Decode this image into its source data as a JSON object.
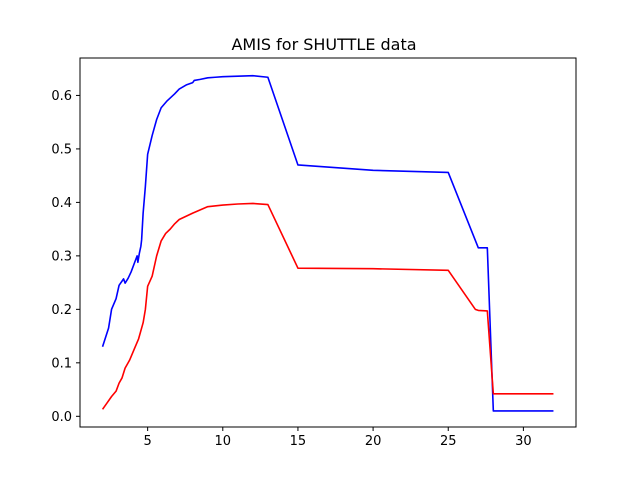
{
  "chart_data": {
    "type": "line",
    "title": "AMIS for SHUTTLE data",
    "xlabel": "",
    "ylabel": "",
    "xlim": [
      0.5,
      33.5
    ],
    "ylim": [
      -0.02,
      0.67
    ],
    "xticks": [
      5,
      10,
      15,
      20,
      25,
      30
    ],
    "yticks": [
      0.0,
      0.1,
      0.2,
      0.3,
      0.4,
      0.5,
      0.6
    ],
    "xtick_labels": [
      "5",
      "10",
      "15",
      "20",
      "25",
      "30"
    ],
    "ytick_labels": [
      "0.0",
      "0.1",
      "0.2",
      "0.3",
      "0.4",
      "0.5",
      "0.6"
    ],
    "grid": false,
    "legend": "none",
    "series": [
      {
        "color": "#0000ff",
        "points": [
          [
            2.0,
            0.13
          ],
          [
            2.4,
            0.165
          ],
          [
            2.6,
            0.2
          ],
          [
            2.9,
            0.22
          ],
          [
            3.1,
            0.245
          ],
          [
            3.4,
            0.257
          ],
          [
            3.5,
            0.249
          ],
          [
            3.7,
            0.258
          ],
          [
            3.9,
            0.27
          ],
          [
            4.1,
            0.285
          ],
          [
            4.3,
            0.3
          ],
          [
            4.35,
            0.288
          ],
          [
            4.45,
            0.305
          ],
          [
            4.55,
            0.318
          ],
          [
            4.6,
            0.33
          ],
          [
            4.7,
            0.38
          ],
          [
            4.85,
            0.43
          ],
          [
            5.0,
            0.49
          ],
          [
            5.3,
            0.525
          ],
          [
            5.6,
            0.555
          ],
          [
            5.9,
            0.577
          ],
          [
            6.3,
            0.59
          ],
          [
            6.8,
            0.603
          ],
          [
            7.1,
            0.612
          ],
          [
            7.6,
            0.62
          ],
          [
            8.0,
            0.624
          ],
          [
            8.1,
            0.628
          ],
          [
            8.5,
            0.63
          ],
          [
            9.0,
            0.633
          ],
          [
            9.5,
            0.634
          ],
          [
            10.0,
            0.635
          ],
          [
            11.0,
            0.636
          ],
          [
            12.0,
            0.637
          ],
          [
            13.0,
            0.634
          ],
          [
            15.0,
            0.47
          ],
          [
            20.0,
            0.46
          ],
          [
            25.0,
            0.456
          ],
          [
            27.0,
            0.315
          ],
          [
            27.6,
            0.315
          ],
          [
            28.0,
            0.01
          ],
          [
            32.0,
            0.01
          ]
        ]
      },
      {
        "color": "#ff0000",
        "points": [
          [
            2.0,
            0.013
          ],
          [
            2.3,
            0.025
          ],
          [
            2.6,
            0.037
          ],
          [
            2.9,
            0.047
          ],
          [
            3.1,
            0.062
          ],
          [
            3.3,
            0.072
          ],
          [
            3.5,
            0.09
          ],
          [
            3.8,
            0.105
          ],
          [
            4.1,
            0.125
          ],
          [
            4.4,
            0.145
          ],
          [
            4.7,
            0.175
          ],
          [
            4.85,
            0.2
          ],
          [
            5.0,
            0.243
          ],
          [
            5.3,
            0.262
          ],
          [
            5.6,
            0.3
          ],
          [
            5.9,
            0.328
          ],
          [
            6.2,
            0.342
          ],
          [
            6.5,
            0.35
          ],
          [
            6.8,
            0.36
          ],
          [
            7.1,
            0.368
          ],
          [
            8.0,
            0.38
          ],
          [
            9.0,
            0.392
          ],
          [
            10.0,
            0.395
          ],
          [
            11.0,
            0.397
          ],
          [
            12.0,
            0.398
          ],
          [
            13.0,
            0.396
          ],
          [
            15.0,
            0.277
          ],
          [
            20.0,
            0.276
          ],
          [
            25.0,
            0.273
          ],
          [
            26.8,
            0.2
          ],
          [
            27.0,
            0.198
          ],
          [
            27.6,
            0.197
          ],
          [
            28.0,
            0.042
          ],
          [
            32.0,
            0.042
          ]
        ]
      }
    ]
  }
}
